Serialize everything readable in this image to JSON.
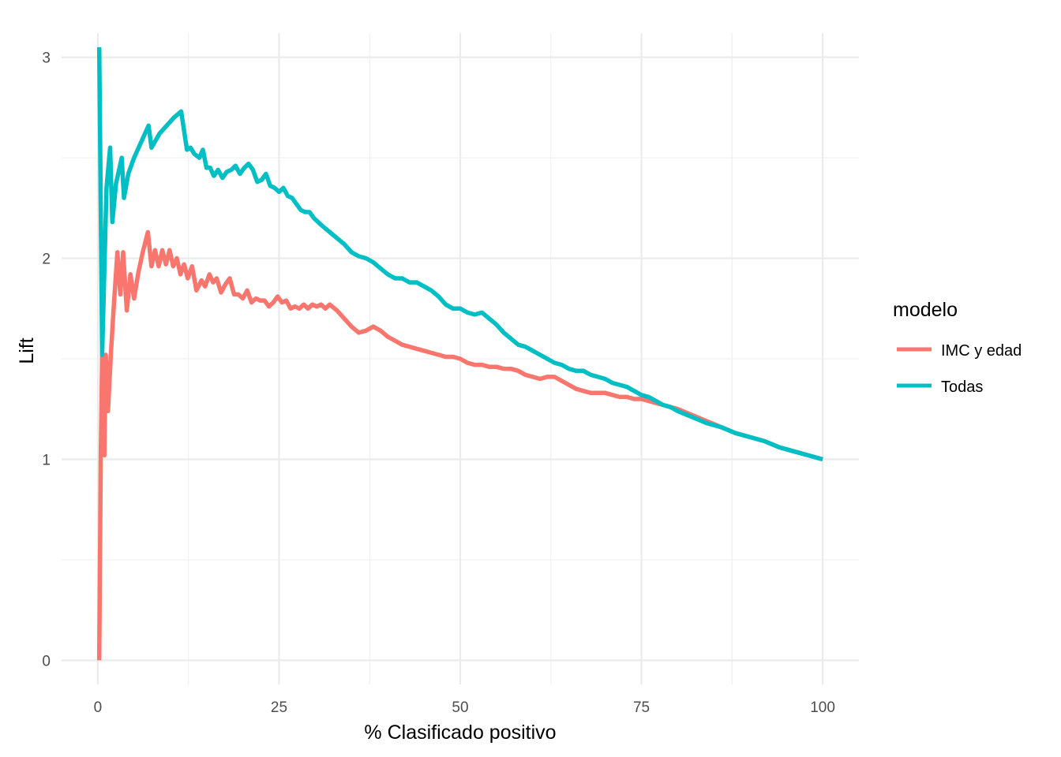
{
  "chart_data": {
    "type": "line",
    "xlabel": "% Clasificado positivo",
    "ylabel": "Lift",
    "xlim": [
      -5,
      105
    ],
    "ylim": [
      -0.12,
      3.12
    ],
    "x_ticks": [
      0,
      25,
      50,
      75,
      100
    ],
    "y_ticks": [
      0,
      1,
      2,
      3
    ],
    "x_tick_labels": [
      "0",
      "25",
      "50",
      "75",
      "100"
    ],
    "y_tick_labels": [
      "0",
      "1",
      "2",
      "3"
    ],
    "grid": true,
    "legend": {
      "title": "modelo",
      "position": "right"
    },
    "series": [
      {
        "name": "IMC y edad",
        "color": "#F8766D",
        "points": [
          [
            0.2,
            0.0
          ],
          [
            0.4,
            1.0
          ],
          [
            0.6,
            1.52
          ],
          [
            0.9,
            1.02
          ],
          [
            1.1,
            1.52
          ],
          [
            1.4,
            1.24
          ],
          [
            1.8,
            1.52
          ],
          [
            2.2,
            1.76
          ],
          [
            2.7,
            2.03
          ],
          [
            3.1,
            1.82
          ],
          [
            3.5,
            2.03
          ],
          [
            4.0,
            1.74
          ],
          [
            4.5,
            1.92
          ],
          [
            5.0,
            1.8
          ],
          [
            5.6,
            1.93
          ],
          [
            6.2,
            2.03
          ],
          [
            6.9,
            2.13
          ],
          [
            7.4,
            1.96
          ],
          [
            7.9,
            2.04
          ],
          [
            8.4,
            1.96
          ],
          [
            8.9,
            2.04
          ],
          [
            9.4,
            1.97
          ],
          [
            9.9,
            2.04
          ],
          [
            10.4,
            1.96
          ],
          [
            10.9,
            2.0
          ],
          [
            11.4,
            1.92
          ],
          [
            11.9,
            1.97
          ],
          [
            12.4,
            1.9
          ],
          [
            13.0,
            1.96
          ],
          [
            13.6,
            1.84
          ],
          [
            14.3,
            1.89
          ],
          [
            14.8,
            1.86
          ],
          [
            15.4,
            1.92
          ],
          [
            15.9,
            1.88
          ],
          [
            16.4,
            1.9
          ],
          [
            17.0,
            1.83
          ],
          [
            17.6,
            1.87
          ],
          [
            18.2,
            1.9
          ],
          [
            18.8,
            1.82
          ],
          [
            19.4,
            1.82
          ],
          [
            20.0,
            1.8
          ],
          [
            20.6,
            1.84
          ],
          [
            21.2,
            1.78
          ],
          [
            21.8,
            1.8
          ],
          [
            22.4,
            1.79
          ],
          [
            23.0,
            1.79
          ],
          [
            23.6,
            1.76
          ],
          [
            24.2,
            1.78
          ],
          [
            24.8,
            1.81
          ],
          [
            25.4,
            1.78
          ],
          [
            26.0,
            1.79
          ],
          [
            26.6,
            1.75
          ],
          [
            27.2,
            1.76
          ],
          [
            27.8,
            1.75
          ],
          [
            28.4,
            1.77
          ],
          [
            29.0,
            1.75
          ],
          [
            29.6,
            1.77
          ],
          [
            30.2,
            1.76
          ],
          [
            30.8,
            1.77
          ],
          [
            31.4,
            1.75
          ],
          [
            32.0,
            1.77
          ],
          [
            33.0,
            1.74
          ],
          [
            34.0,
            1.7
          ],
          [
            35.0,
            1.66
          ],
          [
            36.0,
            1.63
          ],
          [
            37.0,
            1.64
          ],
          [
            38.0,
            1.66
          ],
          [
            39.0,
            1.64
          ],
          [
            40.0,
            1.61
          ],
          [
            41.0,
            1.59
          ],
          [
            42.0,
            1.57
          ],
          [
            43.0,
            1.56
          ],
          [
            44.0,
            1.55
          ],
          [
            45.0,
            1.54
          ],
          [
            46.0,
            1.53
          ],
          [
            47.0,
            1.52
          ],
          [
            48.0,
            1.51
          ],
          [
            49.0,
            1.51
          ],
          [
            50.0,
            1.5
          ],
          [
            51.0,
            1.48
          ],
          [
            52.0,
            1.47
          ],
          [
            53.0,
            1.47
          ],
          [
            54.0,
            1.46
          ],
          [
            55.0,
            1.46
          ],
          [
            56.0,
            1.45
          ],
          [
            57.0,
            1.45
          ],
          [
            58.0,
            1.44
          ],
          [
            59.0,
            1.42
          ],
          [
            60.0,
            1.41
          ],
          [
            61.0,
            1.4
          ],
          [
            62.0,
            1.41
          ],
          [
            63.0,
            1.41
          ],
          [
            64.0,
            1.39
          ],
          [
            65.0,
            1.37
          ],
          [
            66.0,
            1.35
          ],
          [
            67.0,
            1.34
          ],
          [
            68.0,
            1.33
          ],
          [
            69.0,
            1.33
          ],
          [
            70.0,
            1.33
          ],
          [
            71.0,
            1.32
          ],
          [
            72.0,
            1.31
          ],
          [
            73.0,
            1.31
          ],
          [
            74.0,
            1.3
          ],
          [
            75.0,
            1.3
          ],
          [
            76.0,
            1.29
          ],
          [
            77.0,
            1.28
          ],
          [
            78.0,
            1.27
          ],
          [
            79.0,
            1.26
          ],
          [
            80.0,
            1.25
          ],
          [
            82.0,
            1.22
          ],
          [
            84.0,
            1.19
          ],
          [
            86.0,
            1.16
          ],
          [
            88.0,
            1.13
          ],
          [
            90.0,
            1.11
          ],
          [
            92.0,
            1.09
          ],
          [
            94.0,
            1.06
          ],
          [
            96.0,
            1.04
          ],
          [
            98.0,
            1.02
          ],
          [
            100.0,
            1.0
          ]
        ]
      },
      {
        "name": "Todas",
        "color": "#00BFC4",
        "points": [
          [
            0.2,
            3.05
          ],
          [
            0.6,
            1.52
          ],
          [
            1.2,
            2.35
          ],
          [
            1.7,
            2.55
          ],
          [
            2.0,
            2.18
          ],
          [
            2.5,
            2.37
          ],
          [
            3.3,
            2.5
          ],
          [
            3.6,
            2.3
          ],
          [
            4.2,
            2.42
          ],
          [
            5.0,
            2.5
          ],
          [
            6.0,
            2.58
          ],
          [
            7.0,
            2.66
          ],
          [
            7.4,
            2.55
          ],
          [
            8.5,
            2.62
          ],
          [
            9.5,
            2.66
          ],
          [
            10.5,
            2.7
          ],
          [
            11.5,
            2.73
          ],
          [
            12.3,
            2.54
          ],
          [
            12.8,
            2.55
          ],
          [
            13.3,
            2.52
          ],
          [
            14.0,
            2.5
          ],
          [
            14.5,
            2.54
          ],
          [
            15.0,
            2.45
          ],
          [
            15.5,
            2.45
          ],
          [
            16.0,
            2.41
          ],
          [
            16.6,
            2.44
          ],
          [
            17.2,
            2.4
          ],
          [
            17.8,
            2.43
          ],
          [
            18.4,
            2.44
          ],
          [
            19.0,
            2.46
          ],
          [
            19.6,
            2.42
          ],
          [
            20.2,
            2.45
          ],
          [
            20.8,
            2.47
          ],
          [
            21.4,
            2.44
          ],
          [
            22.0,
            2.38
          ],
          [
            22.6,
            2.39
          ],
          [
            23.2,
            2.42
          ],
          [
            23.8,
            2.36
          ],
          [
            24.4,
            2.35
          ],
          [
            25.0,
            2.33
          ],
          [
            25.6,
            2.35
          ],
          [
            26.2,
            2.31
          ],
          [
            26.8,
            2.3
          ],
          [
            27.4,
            2.27
          ],
          [
            28.0,
            2.24
          ],
          [
            28.6,
            2.23
          ],
          [
            29.2,
            2.23
          ],
          [
            29.8,
            2.2
          ],
          [
            30.4,
            2.18
          ],
          [
            31.0,
            2.16
          ],
          [
            32.0,
            2.13
          ],
          [
            33.0,
            2.1
          ],
          [
            34.0,
            2.07
          ],
          [
            35.0,
            2.03
          ],
          [
            36.0,
            2.01
          ],
          [
            37.0,
            2.0
          ],
          [
            38.0,
            1.98
          ],
          [
            39.0,
            1.95
          ],
          [
            40.0,
            1.92
          ],
          [
            41.0,
            1.9
          ],
          [
            42.0,
            1.9
          ],
          [
            43.0,
            1.88
          ],
          [
            44.0,
            1.88
          ],
          [
            45.0,
            1.86
          ],
          [
            46.0,
            1.84
          ],
          [
            47.0,
            1.81
          ],
          [
            48.0,
            1.77
          ],
          [
            49.0,
            1.75
          ],
          [
            50.0,
            1.75
          ],
          [
            51.0,
            1.73
          ],
          [
            52.0,
            1.72
          ],
          [
            53.0,
            1.73
          ],
          [
            54.0,
            1.7
          ],
          [
            55.0,
            1.67
          ],
          [
            56.0,
            1.63
          ],
          [
            57.0,
            1.6
          ],
          [
            58.0,
            1.57
          ],
          [
            59.0,
            1.56
          ],
          [
            60.0,
            1.54
          ],
          [
            61.0,
            1.52
          ],
          [
            62.0,
            1.5
          ],
          [
            63.0,
            1.48
          ],
          [
            64.0,
            1.47
          ],
          [
            65.0,
            1.45
          ],
          [
            66.0,
            1.44
          ],
          [
            67.0,
            1.44
          ],
          [
            68.0,
            1.42
          ],
          [
            69.0,
            1.41
          ],
          [
            70.0,
            1.4
          ],
          [
            71.0,
            1.38
          ],
          [
            72.0,
            1.37
          ],
          [
            73.0,
            1.36
          ],
          [
            74.0,
            1.34
          ],
          [
            75.0,
            1.32
          ],
          [
            76.0,
            1.31
          ],
          [
            77.0,
            1.29
          ],
          [
            78.0,
            1.27
          ],
          [
            79.0,
            1.26
          ],
          [
            80.0,
            1.24
          ],
          [
            82.0,
            1.21
          ],
          [
            84.0,
            1.18
          ],
          [
            86.0,
            1.16
          ],
          [
            88.0,
            1.13
          ],
          [
            90.0,
            1.11
          ],
          [
            92.0,
            1.09
          ],
          [
            94.0,
            1.06
          ],
          [
            96.0,
            1.04
          ],
          [
            98.0,
            1.02
          ],
          [
            100.0,
            1.0
          ]
        ]
      }
    ]
  }
}
